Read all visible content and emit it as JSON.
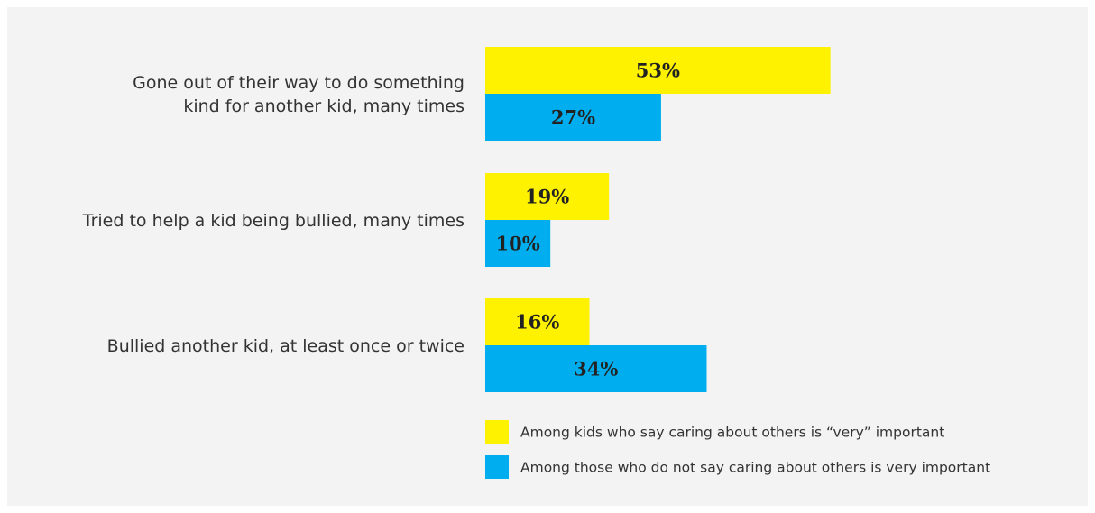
{
  "chart_data": {
    "type": "bar",
    "orientation": "horizontal",
    "title": "",
    "xlabel": "",
    "ylabel": "",
    "categories": [
      [
        "Gone out of their way to do something",
        "kind for another kid, many times"
      ],
      [
        "Tried to help a kid being bullied, many times"
      ],
      [
        "Bullied another kid, at least once or twice"
      ]
    ],
    "series": [
      {
        "name": "Among kids who say caring about others is “very” important",
        "color": "#fff200",
        "values": [
          53,
          19,
          16
        ],
        "labels": [
          "53%",
          "19%",
          "16%"
        ]
      },
      {
        "name": "Among those who do not say caring about others is very important",
        "color": "#00aeef",
        "values": [
          27,
          10,
          34
        ],
        "labels": [
          "27%",
          "10%",
          "34%"
        ]
      }
    ],
    "xlim": [
      0,
      100
    ],
    "grid": false,
    "legend_position": "bottom-right",
    "data_labels": true
  }
}
